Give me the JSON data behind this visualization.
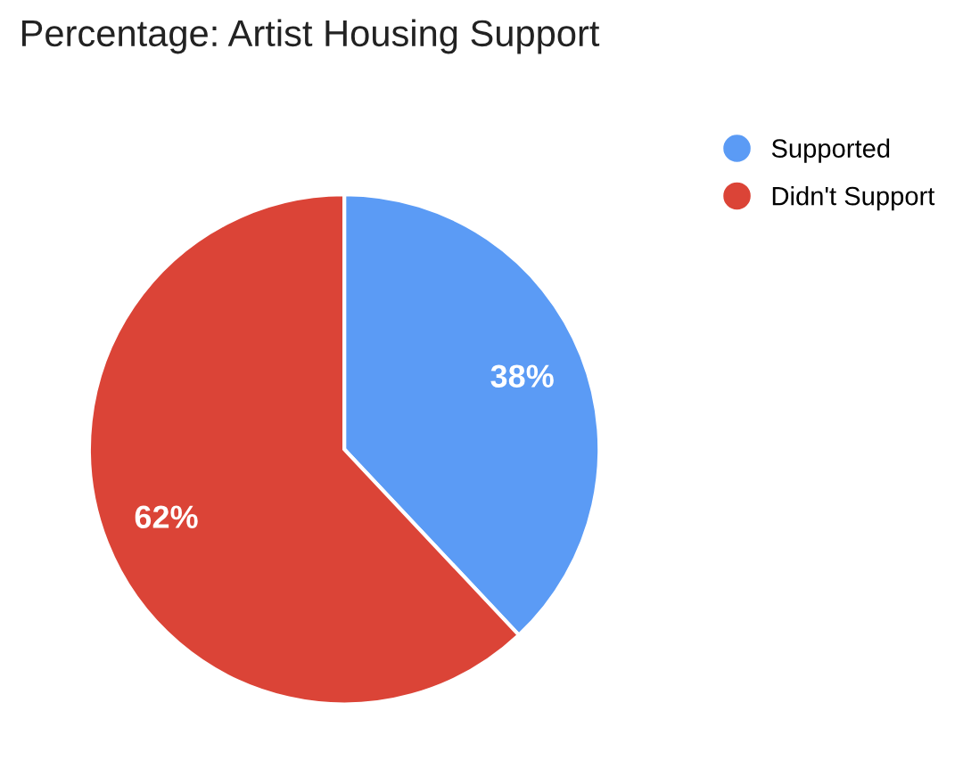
{
  "chart_data": {
    "type": "pie",
    "title": "Percentage: Artist Housing Support",
    "categories": [
      "Supported",
      "Didn't Support"
    ],
    "values": [
      38,
      62
    ],
    "colors": [
      "#5b9bf5",
      "#db4437"
    ],
    "value_labels": [
      "38%",
      "62%"
    ],
    "legend": "top right"
  }
}
